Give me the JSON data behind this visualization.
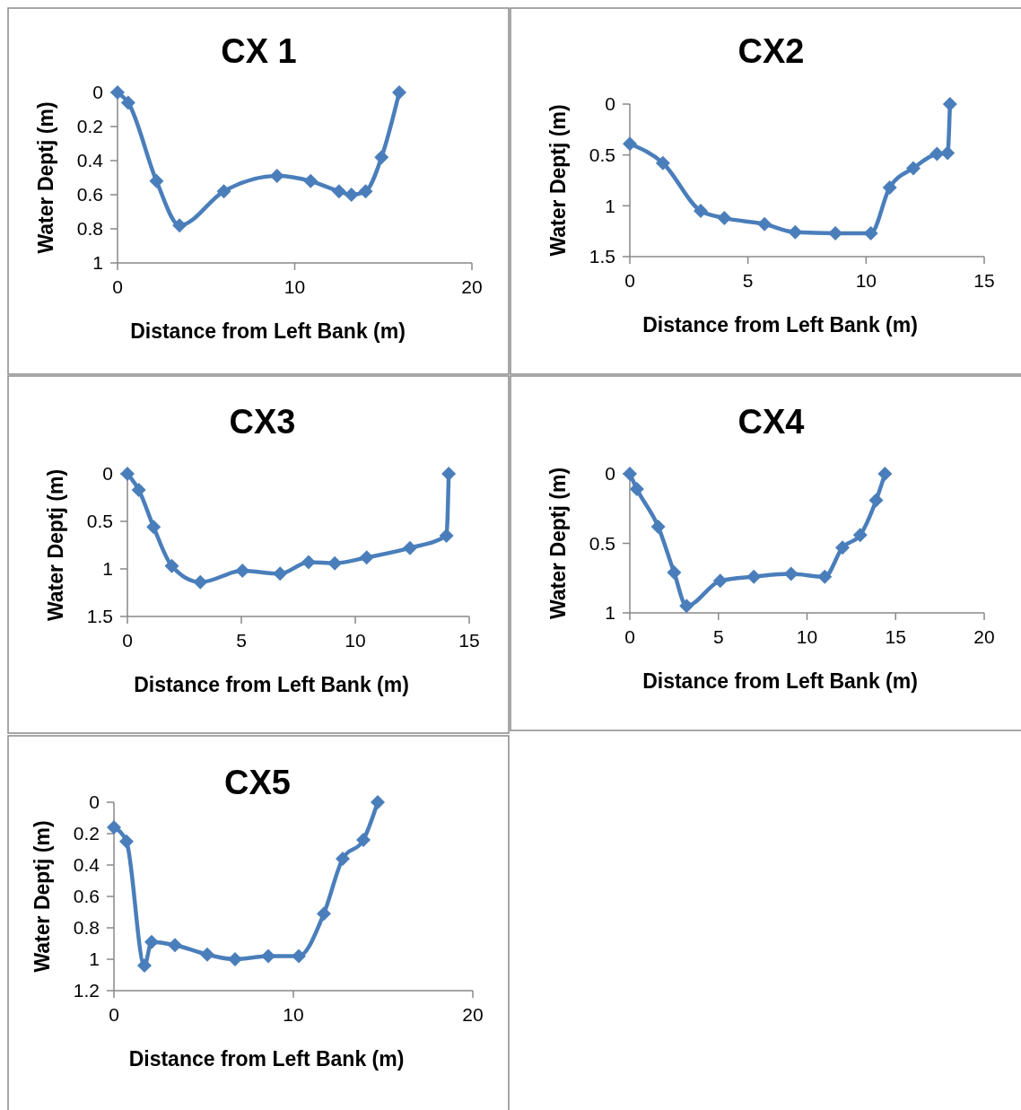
{
  "chart_data": [
    {
      "type": "line",
      "title": "CX 1",
      "xlabel": "Distance from Left Bank (m)",
      "ylabel": "Water Deptj (m)",
      "marker": "diamond",
      "xlim": [
        0,
        20
      ],
      "xticks": [
        0,
        10,
        20
      ],
      "ylim": [
        1,
        0
      ],
      "yticks": [
        0,
        0.2,
        0.4,
        0.6,
        0.8,
        1
      ],
      "x": [
        0,
        0.6,
        2.2,
        3.5,
        6,
        9,
        10.9,
        12.5,
        13.2,
        14,
        14.9,
        15.9
      ],
      "series": [
        {
          "color": "#4a7ebb",
          "values": [
            0,
            0.06,
            0.52,
            0.78,
            0.58,
            0.49,
            0.52,
            0.58,
            0.6,
            0.58,
            0.38,
            0
          ]
        }
      ]
    },
    {
      "type": "line",
      "title": "CX2",
      "xlabel": "Distance from Left Bank (m)",
      "ylabel": "Water Deptj (m)",
      "marker": "diamond",
      "xlim": [
        0,
        15
      ],
      "xticks": [
        0,
        5,
        10,
        15
      ],
      "ylim": [
        1.5,
        0
      ],
      "yticks": [
        0,
        0.5,
        1,
        1.5
      ],
      "x": [
        0,
        1.4,
        3,
        4,
        5.7,
        7,
        8.7,
        10.2,
        11,
        12,
        13,
        13.45,
        13.55
      ],
      "series": [
        {
          "color": "#4a7ebb",
          "values": [
            0.39,
            0.58,
            1.05,
            1.12,
            1.18,
            1.26,
            1.27,
            1.27,
            0.82,
            0.63,
            0.49,
            0.48,
            0
          ]
        }
      ]
    },
    {
      "type": "line",
      "title": "CX3",
      "xlabel": "Distance from Left Bank (m)",
      "ylabel": "Water Deptj (m)",
      "marker": "diamond",
      "xlim": [
        0,
        15
      ],
      "xticks": [
        0,
        5,
        10,
        15
      ],
      "ylim": [
        1.5,
        0
      ],
      "yticks": [
        0,
        0.5,
        1,
        1.5
      ],
      "x": [
        0,
        0.5,
        1.15,
        1.95,
        3.2,
        5.05,
        6.7,
        7.95,
        9.1,
        10.5,
        12.4,
        14,
        14.1
      ],
      "series": [
        {
          "color": "#4a7ebb",
          "values": [
            0,
            0.17,
            0.56,
            0.97,
            1.14,
            1.02,
            1.05,
            0.93,
            0.94,
            0.88,
            0.78,
            0.65,
            0
          ]
        }
      ]
    },
    {
      "type": "line",
      "title": "CX4",
      "xlabel": "Distance from Left Bank (m)",
      "ylabel": "Water Deptj (m)",
      "marker": "diamond",
      "xlim": [
        0,
        20
      ],
      "xticks": [
        0,
        5,
        10,
        15,
        20
      ],
      "ylim": [
        1,
        0
      ],
      "yticks": [
        0,
        0.5,
        1
      ],
      "x": [
        0,
        0.4,
        1.6,
        2.5,
        3.2,
        5.1,
        7,
        9.1,
        11,
        12,
        13,
        13.9,
        14.4
      ],
      "series": [
        {
          "color": "#4a7ebb",
          "values": [
            0,
            0.11,
            0.38,
            0.71,
            0.95,
            0.77,
            0.74,
            0.72,
            0.74,
            0.53,
            0.44,
            0.19,
            0
          ]
        }
      ]
    },
    {
      "type": "line",
      "title": "CX5",
      "xlabel": "Distance from Left Bank (m)",
      "ylabel": "Water Deptj (m)",
      "marker": "diamond",
      "xlim": [
        0,
        20
      ],
      "xticks": [
        0,
        10,
        20
      ],
      "ylim": [
        1.2,
        0
      ],
      "yticks": [
        0,
        0.2,
        0.4,
        0.6,
        0.8,
        1,
        1.2
      ],
      "x": [
        0,
        0.7,
        1.7,
        2.1,
        3.4,
        5.2,
        6.75,
        8.6,
        10.3,
        11.7,
        12.75,
        13.9,
        14.7
      ],
      "series": [
        {
          "color": "#4a7ebb",
          "values": [
            0.16,
            0.25,
            1.04,
            0.89,
            0.91,
            0.97,
            1,
            0.98,
            0.98,
            0.71,
            0.36,
            0.24,
            0
          ]
        }
      ]
    }
  ]
}
